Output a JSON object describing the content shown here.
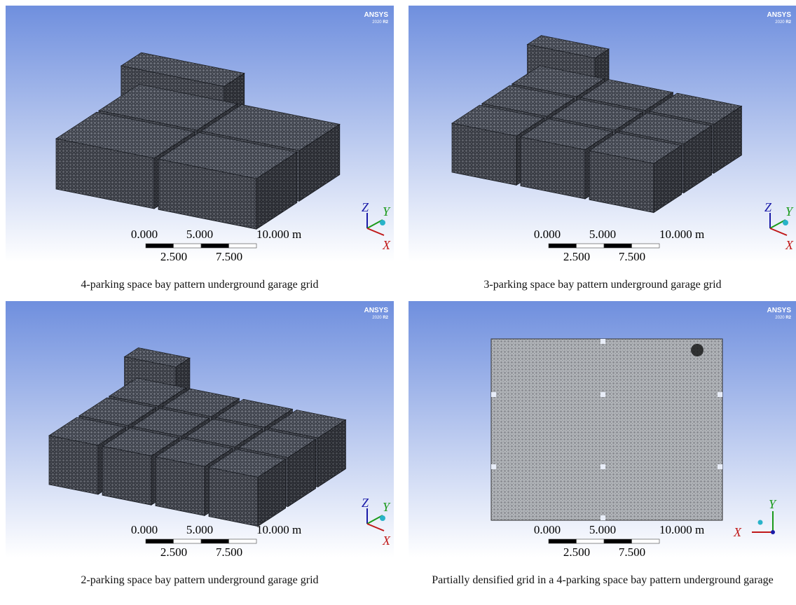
{
  "panels": [
    {
      "logo": "ANSYS",
      "edition": "2020",
      "release": "R2",
      "scale": {
        "top": [
          "0.000",
          "5.000",
          "10.000 m"
        ],
        "bottom": [
          "2.500",
          "7.500"
        ]
      },
      "axes": [
        "Z",
        "Y",
        "X"
      ],
      "caption": "4-parking space bay pattern underground garage grid"
    },
    {
      "logo": "ANSYS",
      "edition": "2020",
      "release": "R2",
      "scale": {
        "top": [
          "0.000",
          "5.000",
          "10.000 m"
        ],
        "bottom": [
          "2.500",
          "7.500"
        ]
      },
      "axes": [
        "Z",
        "Y",
        "X"
      ],
      "caption": "3-parking space bay pattern underground garage grid"
    },
    {
      "logo": "ANSYS",
      "edition": "2020",
      "release": "R2",
      "scale": {
        "top": [
          "0.000",
          "5.000",
          "10.000 m"
        ],
        "bottom": [
          "2.500",
          "7.500"
        ]
      },
      "axes": [
        "Z",
        "Y",
        "X"
      ],
      "caption": "2-parking space bay pattern underground garage grid"
    },
    {
      "logo": "ANSYS",
      "edition": "2020",
      "release": "R2",
      "scale": {
        "top": [
          "0.000",
          "5.000",
          "10.000 m"
        ],
        "bottom": [
          "2.500",
          "7.500"
        ]
      },
      "axes": [
        "Y",
        "X"
      ],
      "caption": "Partially densified grid in a 4-parking space bay pattern underground garage"
    }
  ]
}
